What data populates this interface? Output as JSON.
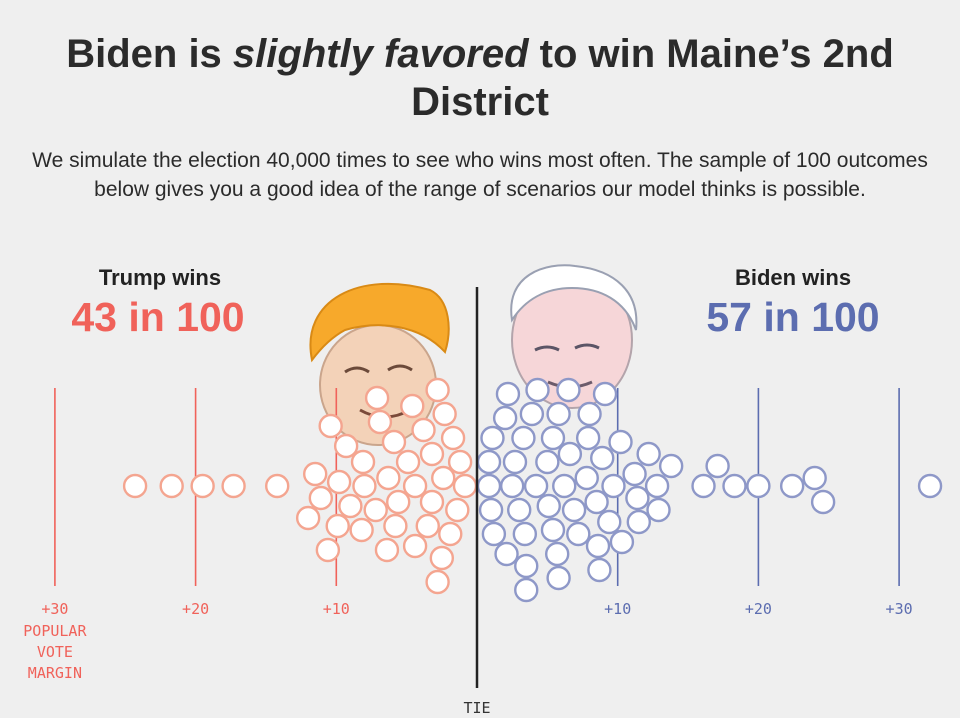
{
  "header": {
    "title_part1": "Biden is ",
    "title_emph": "slightly favored",
    "title_part2": " to win Maine’s 2nd District",
    "subtitle": "We simulate the election 40,000 times to see who wins most often. The sample of 100 outcomes below gives you a good idea of the range of scenarios our model thinks is possible."
  },
  "trump": {
    "label": "Trump wins",
    "count": "43 in 100",
    "color": "#f0625a",
    "dot_color": "#f4a590"
  },
  "biden": {
    "label": "Biden wins",
    "count": "57 in 100",
    "color": "#5c6db0",
    "dot_color": "#8e98c8"
  },
  "illustrations": {
    "left": "trump-caricature",
    "right": "biden-caricature"
  },
  "chart_data": {
    "type": "scatter",
    "subtype": "beeswarm",
    "x_label": "POPULAR VOTE MARGIN",
    "center_label": "TIE",
    "ticks": [
      {
        "value": -30,
        "label": "+30",
        "side": "trump"
      },
      {
        "value": -20,
        "label": "+20",
        "side": "trump"
      },
      {
        "value": -10,
        "label": "+10",
        "side": "trump"
      },
      {
        "value": 10,
        "label": "+10",
        "side": "biden"
      },
      {
        "value": 20,
        "label": "+20",
        "side": "biden"
      },
      {
        "value": 30,
        "label": "+30",
        "side": "biden"
      }
    ],
    "xlim": [
      -30,
      30
    ],
    "trump_margins": [
      -24.3,
      -21.7,
      -19.5,
      -17.3,
      -14.2,
      -12.0,
      -11.5,
      -11.1,
      -10.6,
      -10.4,
      -9.9,
      -9.8,
      -9.3,
      -9.0,
      -8.2,
      -8.1,
      -8.0,
      -7.2,
      -7.1,
      -6.9,
      -6.4,
      -6.3,
      -5.9,
      -5.8,
      -5.6,
      -4.9,
      -4.6,
      -4.4,
      -4.4,
      -3.8,
      -3.5,
      -3.2,
      -3.2,
      -2.8,
      -2.8,
      -2.5,
      -2.4,
      -2.3,
      -1.9,
      -1.7,
      -1.4,
      -1.2,
      -0.6
    ],
    "biden_margins": [
      0.3,
      0.8,
      1.0,
      1.1,
      1.2,
      2.0,
      2.1,
      2.2,
      2.5,
      2.7,
      3.0,
      3.3,
      3.4,
      3.5,
      3.5,
      3.9,
      4.2,
      4.3,
      5.0,
      5.1,
      5.4,
      5.4,
      5.7,
      5.8,
      5.8,
      6.2,
      6.5,
      6.6,
      6.9,
      7.2,
      7.8,
      7.9,
      8.0,
      8.5,
      8.6,
      8.7,
      8.9,
      9.1,
      9.4,
      9.7,
      10.2,
      10.3,
      11.2,
      11.4,
      11.5,
      12.2,
      12.8,
      12.9,
      13.8,
      16.1,
      17.1,
      18.3,
      20.0,
      22.4,
      24.0,
      24.6,
      32.2
    ]
  }
}
